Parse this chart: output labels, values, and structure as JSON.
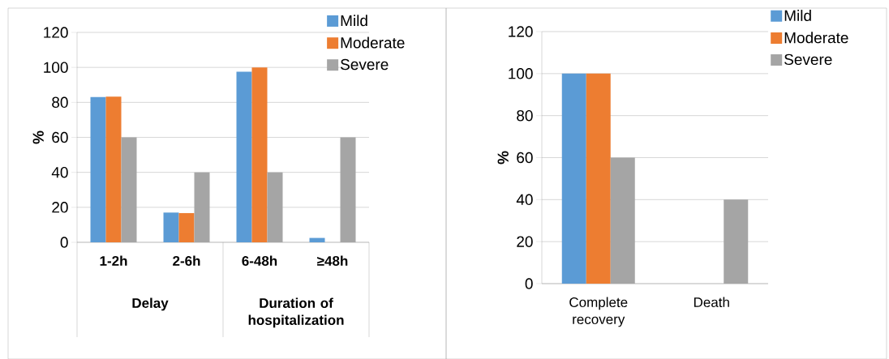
{
  "chart_data": [
    {
      "type": "bar",
      "categories": [
        "1-2h",
        "2-6h",
        "6-48h",
        "≥48h"
      ],
      "ylabel": "%",
      "ylim": [
        0,
        120
      ],
      "yticks": [
        0,
        20,
        40,
        60,
        80,
        100,
        120
      ],
      "grid": "y",
      "legend": "top right",
      "annotations": [
        "Delay",
        "Duration of hospitalization"
      ],
      "series": [
        {
          "name": "Mild",
          "color": "#5b9bd5",
          "values": [
            83,
            17,
            97.5,
            2.5
          ]
        },
        {
          "name": "Moderate",
          "color": "#ed7d31",
          "values": [
            83.3,
            16.7,
            100,
            0
          ]
        },
        {
          "name": "Severe",
          "color": "#a5a5a5",
          "values": [
            60,
            40,
            40,
            60
          ]
        }
      ]
    },
    {
      "type": "bar",
      "categories": [
        "Complete recovery",
        "Death"
      ],
      "ylabel": "%",
      "ylim": [
        0,
        120
      ],
      "yticks": [
        0,
        20,
        40,
        60,
        80,
        100,
        120
      ],
      "grid": "y",
      "legend": "top right",
      "series": [
        {
          "name": "Mild",
          "color": "#5b9bd5",
          "values": [
            100,
            0
          ]
        },
        {
          "name": "Moderate",
          "color": "#ed7d31",
          "values": [
            100,
            0
          ]
        },
        {
          "name": "Severe",
          "color": "#a5a5a5",
          "values": [
            60,
            40
          ]
        }
      ]
    }
  ]
}
